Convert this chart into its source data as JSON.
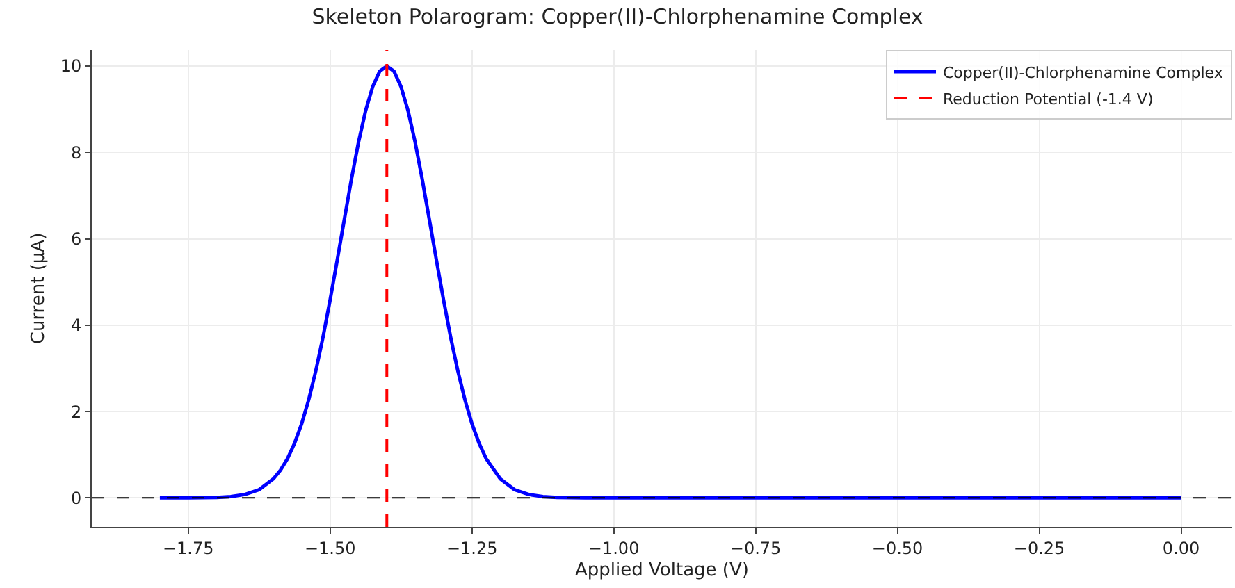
{
  "chart_data": {
    "type": "line",
    "title": "Skeleton Polarogram: Copper(II)-Chlorphenamine Complex",
    "xlabel": "Applied Voltage (V)",
    "ylabel": "Current (μA)",
    "x": [
      -1.8,
      -1.75,
      -1.7,
      -1.675,
      -1.65,
      -1.625,
      -1.6,
      -1.5875,
      -1.575,
      -1.5625,
      -1.55,
      -1.5375,
      -1.525,
      -1.5125,
      -1.5,
      -1.4875,
      -1.475,
      -1.4625,
      -1.45,
      -1.4375,
      -1.425,
      -1.4125,
      -1.4,
      -1.3875,
      -1.375,
      -1.3625,
      -1.35,
      -1.3375,
      -1.325,
      -1.3125,
      -1.3,
      -1.2875,
      -1.275,
      -1.2625,
      -1.25,
      -1.2375,
      -1.225,
      -1.2,
      -1.175,
      -1.15,
      -1.125,
      -1.1,
      -1.05,
      -1.0,
      -0.75,
      -0.5,
      -0.25,
      0.0
    ],
    "series": [
      {
        "name": "Copper(II)-Chlorphenamine Complex",
        "color": "#0000ff",
        "values": [
          0,
          0,
          0.01,
          0.03,
          0.08,
          0.19,
          0.44,
          0.64,
          0.91,
          1.27,
          1.72,
          2.28,
          2.95,
          3.72,
          4.58,
          5.5,
          6.44,
          7.37,
          8.23,
          8.96,
          9.52,
          9.88,
          10,
          9.88,
          9.52,
          8.96,
          8.23,
          7.37,
          6.44,
          5.5,
          4.58,
          3.72,
          2.95,
          2.28,
          1.72,
          1.27,
          0.91,
          0.44,
          0.19,
          0.08,
          0.03,
          0.01,
          0,
          0,
          0,
          0,
          0,
          0
        ]
      },
      {
        "name": "Reduction Potential (-1.4 V)",
        "type": "line",
        "color": "#ff0000",
        "line_style": "dashed",
        "x": [
          -1.4,
          -1.4
        ],
        "values": [
          -0.67,
          10.37
        ]
      }
    ],
    "xlim": [
      -1.92,
      0.09
    ],
    "ylim": [
      -0.67,
      10.37
    ],
    "xticks": [
      {
        "value": -1.75,
        "label": "−1.75"
      },
      {
        "value": -1.5,
        "label": "−1.50"
      },
      {
        "value": -1.25,
        "label": "−1.25"
      },
      {
        "value": -1.0,
        "label": "−1.00"
      },
      {
        "value": -0.75,
        "label": "−0.75"
      },
      {
        "value": -0.5,
        "label": "−0.50"
      },
      {
        "value": -0.25,
        "label": "−0.25"
      },
      {
        "value": 0,
        "label": "0.00"
      }
    ],
    "yticks": [
      0,
      2,
      4,
      6,
      8,
      10
    ],
    "ref_lines": [
      {
        "axis": "y",
        "value": 0,
        "label": null,
        "color": "#000000",
        "line_style": "dashed"
      }
    ],
    "grid": true,
    "legend": "top right",
    "marker": "none",
    "line_style": "solid"
  }
}
